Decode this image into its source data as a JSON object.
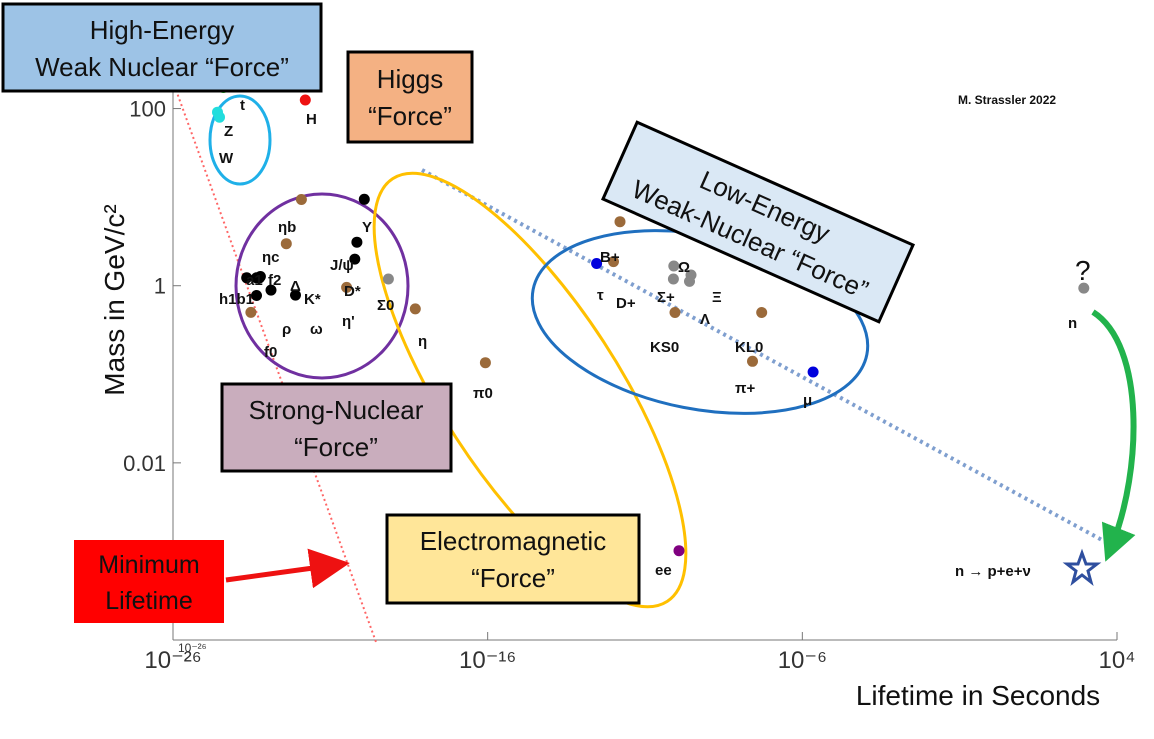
{
  "chart_data": {
    "type": "scatter",
    "title": "",
    "xlabel": "Lifetime in Seconds",
    "ylabel": "Mass in GeV/c²",
    "xscale": "log",
    "yscale": "log",
    "xlim": [
      1e-26,
      10000
    ],
    "ylim": [
      0.0001,
      1000
    ],
    "x_ticks": [
      {
        "value": 1e-26,
        "label": "10⁻²⁶"
      },
      {
        "value": 1e-16,
        "label": "10⁻¹⁶"
      },
      {
        "value": 1e-06,
        "label": "10⁻⁶"
      },
      {
        "value": 10000,
        "label": "10⁴"
      }
    ],
    "x_tick_overlap_label": "10⁻²⁶",
    "y_ticks": [
      {
        "value": 100,
        "label": "100"
      },
      {
        "value": 1,
        "label": "1"
      },
      {
        "value": 0.01,
        "label": "0.01"
      }
    ],
    "credit": "M. Strassler 2022",
    "points": [
      {
        "label": "t",
        "x": 4e-25,
        "y": 173,
        "color": "#22cc22"
      },
      {
        "label": "Z",
        "x": 2.6e-25,
        "y": 91,
        "color": "#22dddd"
      },
      {
        "label": "W",
        "x": 3e-25,
        "y": 80,
        "color": "#22dddd"
      },
      {
        "label": "H",
        "x": 1.6e-22,
        "y": 125,
        "color": "#ee1111"
      },
      {
        "label": "ηb",
        "x": 1.2e-22,
        "y": 9.4,
        "color": "#9b6a3a"
      },
      {
        "label": "Υ",
        "x": 1.2e-20,
        "y": 9.46,
        "color": "#000000"
      },
      {
        "label": "ηc",
        "x": 4e-23,
        "y": 2.98,
        "color": "#9b6a3a"
      },
      {
        "label": "J/ψ",
        "x": 7e-21,
        "y": 3.1,
        "color": "#000000"
      },
      {
        "label": "D*",
        "x": 6e-21,
        "y": 2.0,
        "color": "#000000"
      },
      {
        "label": "Σ0",
        "x": 7e-20,
        "y": 1.19,
        "color": "#888888"
      },
      {
        "label": "η'",
        "x": 3.3e-21,
        "y": 0.958,
        "color": "#9b6a3a"
      },
      {
        "label": "a1",
        "x": 2.2e-24,
        "y": 1.23,
        "color": "#000000"
      },
      {
        "label": "b1",
        "x": 4.5e-24,
        "y": 1.23,
        "color": "#000000"
      },
      {
        "label": "f2",
        "x": 6e-24,
        "y": 1.27,
        "color": "#000000"
      },
      {
        "label": "Δ",
        "x": 5.6e-24,
        "y": 1.23,
        "color": "#000000"
      },
      {
        "label": "K*",
        "x": 1.3e-23,
        "y": 0.892,
        "color": "#000000"
      },
      {
        "label": "ρ",
        "x": 4.5e-24,
        "y": 0.775,
        "color": "#000000"
      },
      {
        "label": "ω",
        "x": 7.8e-23,
        "y": 0.783,
        "color": "#000000"
      },
      {
        "label": "f0",
        "x": 3e-24,
        "y": 0.5,
        "color": "#9b6a3a"
      },
      {
        "label": "η",
        "x": 5e-19,
        "y": 0.548,
        "color": "#9b6a3a"
      },
      {
        "label": "π0",
        "x": 8.5e-17,
        "y": 0.135,
        "color": "#9b6a3a"
      },
      {
        "label": "ee",
        "x": 1.2e-10,
        "y": 0.00102,
        "color": "#800080"
      },
      {
        "label": "B+",
        "x": 1.6e-12,
        "y": 5.28,
        "color": "#9b6a3a"
      },
      {
        "label": "τ",
        "x": 2.9e-13,
        "y": 1.78,
        "color": "#0000dd"
      },
      {
        "label": "D+",
        "x": 1e-12,
        "y": 1.87,
        "color": "#9b6a3a"
      },
      {
        "label": "Ω",
        "x": 8.2e-11,
        "y": 1.67,
        "color": "#888888"
      },
      {
        "label": "Σ+",
        "x": 8e-11,
        "y": 1.19,
        "color": "#888888"
      },
      {
        "label": "Ξ",
        "x": 2.9e-10,
        "y": 1.32,
        "color": "#888888"
      },
      {
        "label": "Λ",
        "x": 2.6e-10,
        "y": 1.12,
        "color": "#888888"
      },
      {
        "label": "KS0",
        "x": 9e-11,
        "y": 0.498,
        "color": "#9b6a3a"
      },
      {
        "label": "KL0",
        "x": 5.1e-08,
        "y": 0.498,
        "color": "#9b6a3a"
      },
      {
        "label": "π+",
        "x": 2.6e-08,
        "y": 0.14,
        "color": "#9b6a3a"
      },
      {
        "label": "μ",
        "x": 2.2e-06,
        "y": 0.106,
        "color": "#0000dd"
      },
      {
        "label": "n",
        "x": 880,
        "y": 0.94,
        "color": "#888888"
      }
    ],
    "point_labels": {
      "t": "t",
      "Z": "Z",
      "W": "W",
      "H": "H",
      "eta_b": "ηb",
      "upsilon": "Υ",
      "eta_c": "ηc",
      "jpsi": "J/ψ",
      "dstar": "D*",
      "sigma0": "Σ0",
      "eta_prime": "η'",
      "a1": "a1",
      "f2": "f2",
      "delta": "Δ",
      "h1b1": "h1b1",
      "kstar": "K*",
      "rho": "ρ",
      "omega": "ω",
      "f0": "f0",
      "eta": "η",
      "pi0": "π0",
      "ee": "ee",
      "bplus": "B+",
      "tau": "τ",
      "dplus": "D+",
      "Omega": "Ω",
      "sigmaplus": "Σ+",
      "xi": "Ξ",
      "Lambda": "Λ",
      "ks0": "KS0",
      "kl0": "KL0",
      "piplus": "π+",
      "mu": "μ",
      "n": "n",
      "question": "?",
      "decay": "n → p+e+ν"
    },
    "force_boxes": {
      "high_energy_weak": [
        "High-Energy",
        "Weak Nuclear “Force”"
      ],
      "higgs": [
        "Higgs",
        "“Force”"
      ],
      "low_energy_weak": [
        "Low-Energy",
        "Weak-Nuclear “Force”"
      ],
      "strong": [
        "Strong-Nuclear",
        "“Force”"
      ],
      "electromagnetic": [
        "Electromagnetic",
        "“Force”"
      ],
      "minimum_lifetime": [
        "Minimum",
        "Lifetime"
      ]
    },
    "colors": {
      "high_energy_weak_box": "#9dc3e6",
      "higgs_box": "#f4b183",
      "low_energy_weak_box": "#dae8f5",
      "strong_box": "#c9adbd",
      "electromagnetic_box": "#ffe699",
      "minimum_lifetime_box": "#ff0000",
      "weak_ellipse_light": "#1fb0e8",
      "strong_circle": "#7030a0",
      "em_ellipse": "#ffc000",
      "weak_ellipse": "#1f6fbf",
      "min_lifetime_line": "#ff6666",
      "weak_trend_line": "#7f9fcf",
      "neutron_arrow": "#22b34c",
      "star": "#2f4f9f"
    }
  }
}
